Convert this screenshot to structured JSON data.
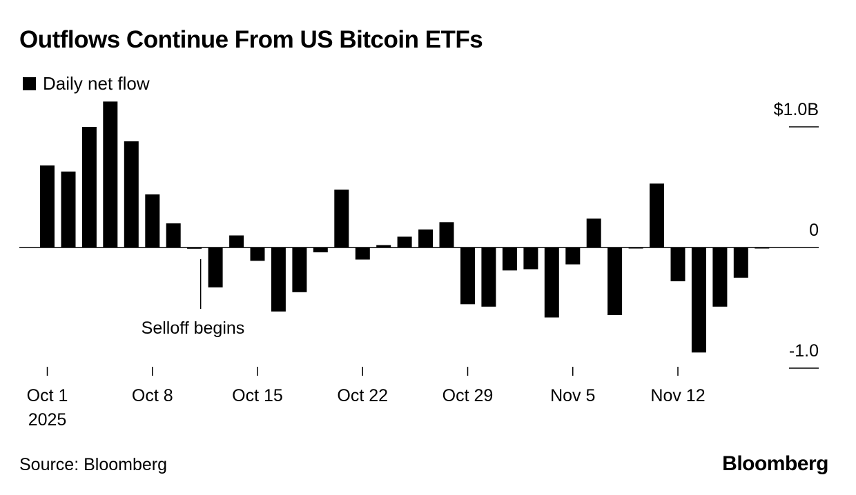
{
  "header": {
    "title": "Outflows Continue From US Bitcoin ETFs",
    "legend_label": "Daily net flow"
  },
  "footer": {
    "source": "Source: Bloomberg",
    "brand": "Bloomberg"
  },
  "colors": {
    "bar": "#000000",
    "axis": "#000000",
    "background": "#ffffff"
  },
  "chart_data": {
    "type": "bar",
    "title": "Outflows Continue From US Bitcoin ETFs",
    "unit": "USD billions",
    "xlabel": "",
    "ylabel": "",
    "ylim": [
      -1.0,
      1.0
    ],
    "y_ticks": [
      {
        "value": 1.0,
        "label": "$1.0B"
      },
      {
        "value": 0,
        "label": "0"
      },
      {
        "value": -1.0,
        "label": "-1.0"
      }
    ],
    "x_ticks": [
      {
        "index": 0,
        "label": "Oct 1",
        "sublabel": "2025"
      },
      {
        "index": 5,
        "label": "Oct 8"
      },
      {
        "index": 10,
        "label": "Oct 15"
      },
      {
        "index": 15,
        "label": "Oct 22"
      },
      {
        "index": 20,
        "label": "Oct 29"
      },
      {
        "index": 25,
        "label": "Nov 5"
      },
      {
        "index": 30,
        "label": "Nov 12"
      }
    ],
    "categories": [
      "Oct 1",
      "Oct 2",
      "Oct 3",
      "Oct 6",
      "Oct 7",
      "Oct 8",
      "Oct 9",
      "Oct 10",
      "Oct 13",
      "Oct 14",
      "Oct 15",
      "Oct 16",
      "Oct 17",
      "Oct 20",
      "Oct 21",
      "Oct 22",
      "Oct 23",
      "Oct 24",
      "Oct 27",
      "Oct 28",
      "Oct 29",
      "Oct 30",
      "Oct 31",
      "Nov 3",
      "Nov 4",
      "Nov 5",
      "Nov 6",
      "Nov 7",
      "Nov 10",
      "Nov 11",
      "Nov 12",
      "Nov 13",
      "Nov 14",
      "Nov 17",
      "Nov 18"
    ],
    "values": [
      0.68,
      0.63,
      1.0,
      1.21,
      0.88,
      0.44,
      0.2,
      -0.01,
      -0.33,
      0.1,
      -0.11,
      -0.53,
      -0.37,
      -0.04,
      0.48,
      -0.1,
      0.02,
      0.09,
      0.15,
      0.21,
      -0.47,
      -0.49,
      -0.19,
      -0.18,
      -0.58,
      -0.14,
      0.24,
      -0.56,
      0.0,
      0.53,
      -0.28,
      -0.87,
      -0.49,
      -0.25,
      0.0
    ],
    "annotations": [
      {
        "text": "Selloff begins",
        "index": 7
      }
    ]
  }
}
